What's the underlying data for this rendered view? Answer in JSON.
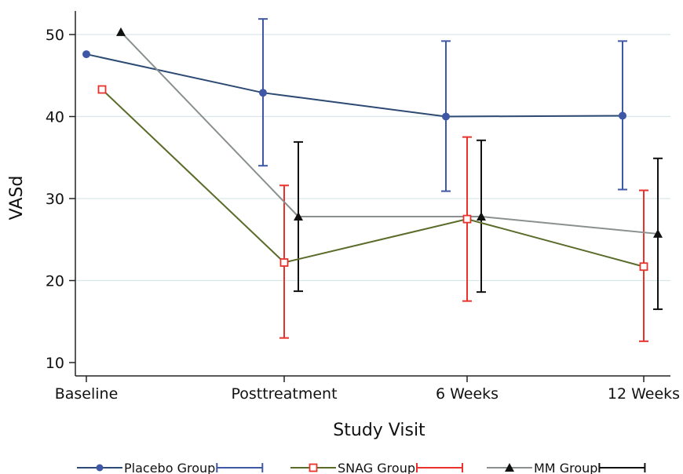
{
  "chart_data": {
    "type": "line",
    "title": "",
    "xlabel": "Study Visit",
    "ylabel": "VASd",
    "categories": [
      "Baseline",
      "Posttreatment",
      "6 Weeks",
      "12 Weeks"
    ],
    "yticks": [
      10,
      20,
      30,
      40,
      50
    ],
    "ylim": [
      9,
      53
    ],
    "grid": true,
    "legend_position": "bottom",
    "series": [
      {
        "name": "Placebo Group",
        "color": "#3f58a6",
        "line_color": "#2c4a73",
        "marker": "filled-circle",
        "values": [
          47.6,
          42.9,
          40.0,
          40.1
        ],
        "error_low": [
          null,
          34.0,
          30.9,
          31.1
        ],
        "error_high": [
          null,
          51.9,
          49.2,
          49.2
        ]
      },
      {
        "name": "SNAG Group",
        "color": "#e8322b",
        "line_color": "#5a6b2a",
        "marker": "hollow-square",
        "values": [
          43.3,
          22.2,
          27.5,
          21.7
        ],
        "error_low": [
          null,
          13.0,
          17.5,
          12.6
        ],
        "error_high": [
          null,
          31.6,
          37.5,
          31.0
        ]
      },
      {
        "name": "MM Group",
        "color": "#111111",
        "line_color": "#8a9090",
        "marker": "filled-triangle",
        "values": [
          50.3,
          27.8,
          27.8,
          25.7
        ],
        "error_low": [
          null,
          18.7,
          18.6,
          16.5
        ],
        "error_high": [
          null,
          36.9,
          37.1,
          34.9
        ]
      }
    ],
    "legend": [
      {
        "label": "Placebo Group",
        "bar_label": ""
      },
      {
        "label": "SNAG Group",
        "bar_label": ""
      },
      {
        "label": "MM Group",
        "bar_label": ""
      }
    ]
  }
}
